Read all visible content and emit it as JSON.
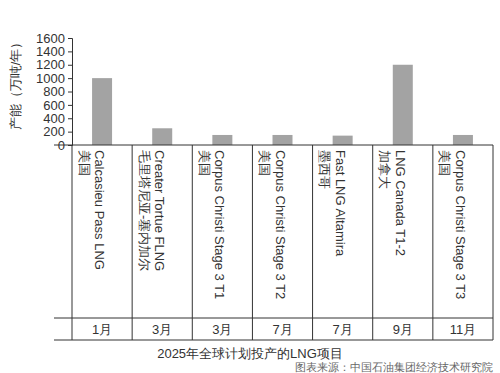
{
  "chart_data": {
    "type": "bar",
    "title": "2025年全球计划投产的LNG项目",
    "y_label": "产能（万吨/年）",
    "source": "图表来源：中国石油集团经济技术研究院",
    "categories": [
      "Calcasieu Pass LNG",
      "Creater Tortue FLNG",
      "Corpus Christi Stage 3 T1",
      "Corpus Christi Stage 3 T2",
      "Fast LNG Altamira",
      "LNG Canada T1-2",
      "Corpus Christi Stage 3 T3"
    ],
    "countries": [
      "美国",
      "毛里塔尼亚-塞内加尔",
      "美国",
      "美国",
      "墨西哥",
      "加拿大",
      "美国"
    ],
    "months": [
      "1月",
      "3月",
      "3月",
      "7月",
      "7月",
      "9月",
      "11月"
    ],
    "values": [
      1000,
      250,
      150,
      150,
      140,
      1200,
      150
    ],
    "color": "#a3a3a3",
    "ylim": [
      0,
      1600
    ],
    "yticks": [
      0,
      200,
      400,
      600,
      800,
      1000,
      1200,
      1400,
      1600
    ],
    "grid": false
  }
}
